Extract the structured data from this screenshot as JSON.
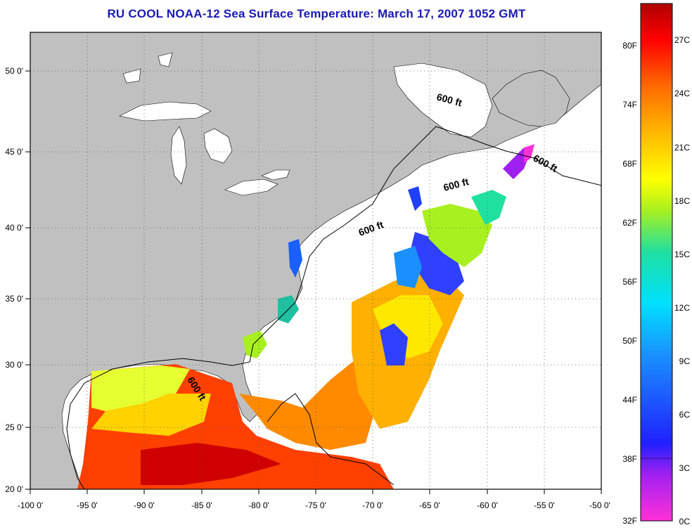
{
  "title": "RU COOL  NOAA-12  Sea Surface Temperature:  March 17, 2007 1052 GMT",
  "map": {
    "lon_ticks": [
      "-100 0'",
      "-95 0'",
      "-90 0'",
      "-85 0'",
      "-80 0'",
      "-75 0'",
      "-70 0'",
      "-65 0'",
      "-60 0'",
      "-55 0'",
      "-50 0'"
    ],
    "lat_ticks": [
      "50 0'",
      "45 0'",
      "40 0'",
      "35 0'",
      "30 0'",
      "25 0'",
      "20 0'"
    ],
    "isobath_labels": [
      "600 ft",
      "600 ft",
      "600 ft",
      "600 ft",
      "600 ft"
    ],
    "colors": {
      "land": "#c0c0c0",
      "water": "#ffffff",
      "frame": "#000000"
    }
  },
  "colorbar": {
    "fahrenheit_labels": [
      "80F",
      "74F",
      "68F",
      "62F",
      "56F",
      "50F",
      "44F",
      "38F",
      "32F"
    ],
    "celsius_labels": [
      "27C",
      "24C",
      "21C",
      "18C",
      "15C",
      "12C",
      "9C",
      "6C",
      "3C",
      "0C"
    ],
    "range_c": [
      0,
      28.3
    ],
    "palette": [
      "#ff30d8",
      "#a020f0",
      "#2020ff",
      "#1a90ff",
      "#00e0ff",
      "#20e0a0",
      "#a8f020",
      "#ffff00",
      "#ffb000",
      "#ff6a00",
      "#ff0000",
      "#b00000"
    ]
  }
}
